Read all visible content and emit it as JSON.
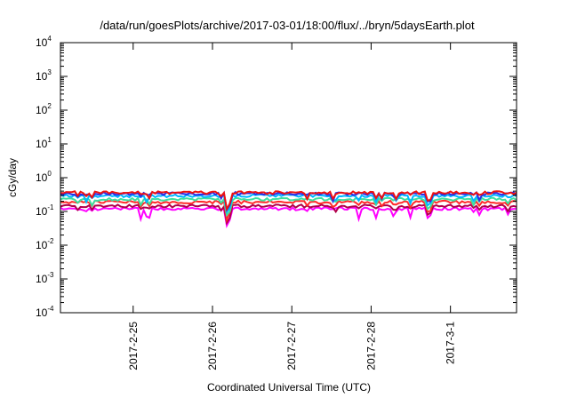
{
  "chart_data": {
    "type": "line",
    "title": "/data/run/goesPlots/archive/2017-03-01/18:00/flux/../bryn/5daysEarth.plot",
    "xlabel": "Coordinated Universal Time (UTC)",
    "ylabel": "cGy/day",
    "yscale": "log",
    "ylim": [
      0.0001,
      10000
    ],
    "y_ticks": [
      {
        "base": "10",
        "exp": "-4"
      },
      {
        "base": "10",
        "exp": "-3"
      },
      {
        "base": "10",
        "exp": "-2"
      },
      {
        "base": "10",
        "exp": "-1"
      },
      {
        "base": "10",
        "exp": "0"
      },
      {
        "base": "10",
        "exp": "1"
      },
      {
        "base": "10",
        "exp": "2"
      },
      {
        "base": "10",
        "exp": "3"
      },
      {
        "base": "10",
        "exp": "4"
      }
    ],
    "xlim": [
      "2017-02-24T02:00",
      "2017-03-01T20:00"
    ],
    "x_ticks": [
      {
        "label": "2017-2-25",
        "value": "2017-02-25T00:00"
      },
      {
        "label": "2017-2-26",
        "value": "2017-02-26T00:00"
      },
      {
        "label": "2017-2-27",
        "value": "2017-02-27T00:00"
      },
      {
        "label": "2017-2-28",
        "value": "2017-02-28T00:00"
      },
      {
        "label": "2017-3-1",
        "value": "2017-03-01T00:00"
      }
    ],
    "grid": false,
    "series": [
      {
        "color": "#ff00ff",
        "level": 0.12,
        "dips": 0.45
      },
      {
        "color": "#b0004a",
        "level": 0.145,
        "dips": 0.7
      },
      {
        "color": "#ff2a2a",
        "level": 0.19,
        "dips": 0.72
      },
      {
        "color": "#3de0a0",
        "level": 0.23,
        "dips": 0.7
      },
      {
        "color": "#00b8ff",
        "level": 0.29,
        "dips": 0.6
      },
      {
        "color": "#2a2ae8",
        "level": 0.34,
        "dips": 0.6
      },
      {
        "color": "#ee1111",
        "level": 0.36,
        "dips": 0.65
      }
    ]
  }
}
